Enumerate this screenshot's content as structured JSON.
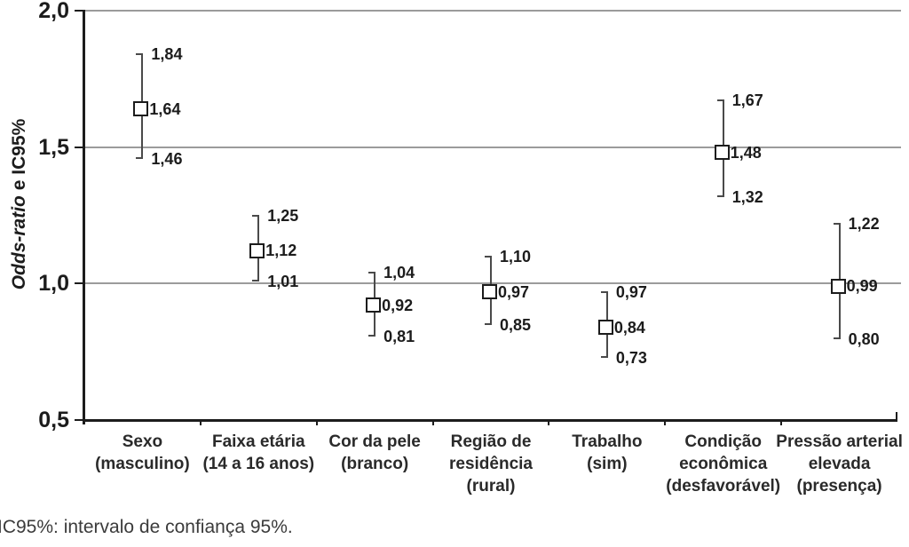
{
  "chart_data": {
    "type": "scatter",
    "subtype": "odds-ratio-with-95ci-error-bars",
    "title": "",
    "xlabel": "",
    "ylabel_italic": "Odds-ratio",
    "ylabel_rest": " e IC95%",
    "ylabel_full": "Odds-ratio e IC95%",
    "ylim": [
      0.5,
      2.0
    ],
    "yticks": [
      {
        "value": 0.5,
        "label": "0,5"
      },
      {
        "value": 1.0,
        "label": "1,0"
      },
      {
        "value": 1.5,
        "label": "1,5"
      },
      {
        "value": 2.0,
        "label": "2,0"
      }
    ],
    "gridline_values": [
      1.0,
      1.5,
      2.0
    ],
    "grid": "horizontal",
    "legend": "none",
    "categories": [
      "Sexo (masculino)",
      "Faixa etária (14 a 16 anos)",
      "Cor da pele (branco)",
      "Região de residência (rural)",
      "Trabalho (sim)",
      "Condição econômica (desfavorável)",
      "Pressão arterial elevada (presença)"
    ],
    "points": [
      {
        "category": "Sexo\n(masculino)",
        "or": 1.64,
        "ci_low": 1.46,
        "ci_high": 1.84,
        "or_label": "1,64",
        "ci_low_label": "1,46",
        "ci_high_label": "1,84"
      },
      {
        "category": "Faixa etária\n(14 a 16 anos)",
        "or": 1.12,
        "ci_low": 1.01,
        "ci_high": 1.25,
        "or_label": "1,12",
        "ci_low_label": "1,01",
        "ci_high_label": "1,25"
      },
      {
        "category": "Cor da pele\n(branco)",
        "or": 0.92,
        "ci_low": 0.81,
        "ci_high": 1.04,
        "or_label": "0,92",
        "ci_low_label": "0,81",
        "ci_high_label": "1,04"
      },
      {
        "category": "Região de\nresidência\n(rural)",
        "or": 0.97,
        "ci_low": 0.85,
        "ci_high": 1.1,
        "or_label": "0,97",
        "ci_low_label": "0,85",
        "ci_high_label": "1,10"
      },
      {
        "category": "Trabalho\n(sim)",
        "or": 0.84,
        "ci_low": 0.73,
        "ci_high": 0.97,
        "or_label": "0,84",
        "ci_low_label": "0,73",
        "ci_high_label": "0,97"
      },
      {
        "category": "Condição\neconômica\n(desfavorável)",
        "or": 1.48,
        "ci_low": 1.32,
        "ci_high": 1.67,
        "or_label": "1,48",
        "ci_low_label": "1,32",
        "ci_high_label": "1,67"
      },
      {
        "category": "Pressão arterial\nelevada\n(presença)",
        "or": 0.99,
        "ci_low": 0.8,
        "ci_high": 1.22,
        "or_label": "0,99",
        "ci_low_label": "0,80",
        "ci_high_label": "1,22"
      }
    ],
    "footnote": "IC95%: intervalo de confiança 95%.",
    "colors": {
      "background": "#ffffff",
      "axis": "#1c1c1c",
      "gridline": "#9b9b9b",
      "error_bar": "#4a4a4a",
      "marker_border": "#1c1c1c",
      "marker_fill": "#ffffff",
      "text": "#1c1c1c",
      "footnote_text": "#3b3b3b"
    }
  }
}
